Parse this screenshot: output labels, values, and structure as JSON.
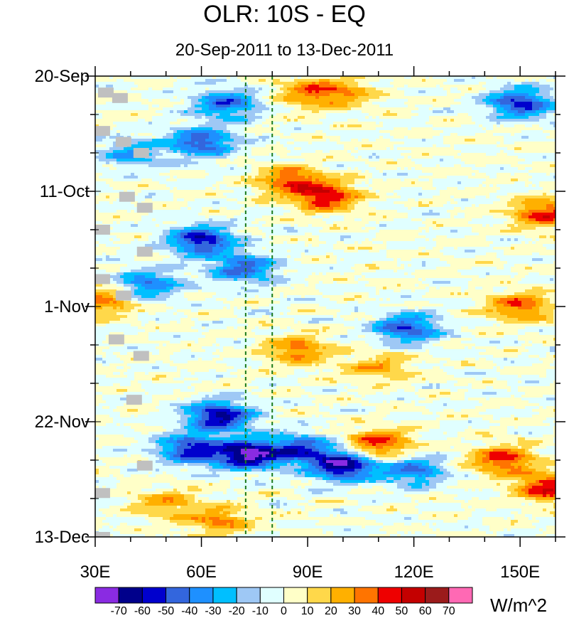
{
  "chart_data": {
    "type": "heatmap",
    "title": "OLR: 10S - EQ",
    "subtitle": "20-Sep-2011 to 13-Dec-2011",
    "x_range": [
      30,
      160
    ],
    "x_ticks": [
      30,
      60,
      90,
      120,
      150
    ],
    "x_tick_labels": [
      "30E",
      "60E",
      "90E",
      "120E",
      "150E"
    ],
    "y_range_days": [
      0,
      84
    ],
    "y_ticks_days": [
      0,
      21,
      42,
      63,
      84
    ],
    "y_tick_labels": [
      "20-Sep",
      "11-Oct",
      "1-Nov",
      "22-Nov",
      "13-Dec"
    ],
    "reference_lines_lon": [
      72.5,
      80
    ],
    "colorbar": {
      "units": "W/m^2",
      "levels": [
        -70,
        -60,
        -50,
        -40,
        -30,
        -20,
        -10,
        0,
        10,
        20,
        30,
        40,
        50,
        60,
        70
      ],
      "colors": [
        "#8a2be2",
        "#00008b",
        "#0000cd",
        "#3366dd",
        "#1e90ff",
        "#00bfff",
        "#9ec8f5",
        "#e0ffff",
        "#ffffc8",
        "#ffd84a",
        "#ffb000",
        "#ff7400",
        "#ee0000",
        "#c40000",
        "#9b1b1b",
        "#ff69b4"
      ],
      "missing_color": "#c0c0c0"
    },
    "anomaly_features": [
      {
        "lon": 90,
        "day": 3,
        "value": 30
      },
      {
        "lon": 100,
        "day": 3,
        "value": 25
      },
      {
        "lon": 67,
        "day": 5,
        "value": -45
      },
      {
        "lon": 150,
        "day": 5,
        "value": -55
      },
      {
        "lon": 60,
        "day": 12,
        "value": -50
      },
      {
        "lon": 40,
        "day": 14,
        "value": -30
      },
      {
        "lon": 85,
        "day": 19,
        "value": 40
      },
      {
        "lon": 95,
        "day": 22,
        "value": 50
      },
      {
        "lon": 157,
        "day": 25,
        "value": 45
      },
      {
        "lon": 60,
        "day": 30,
        "value": -60
      },
      {
        "lon": 72,
        "day": 35,
        "value": -45
      },
      {
        "lon": 45,
        "day": 38,
        "value": -40
      },
      {
        "lon": 32,
        "day": 41,
        "value": 35
      },
      {
        "lon": 150,
        "day": 42,
        "value": 40
      },
      {
        "lon": 118,
        "day": 46,
        "value": -50
      },
      {
        "lon": 87,
        "day": 50,
        "value": 35
      },
      {
        "lon": 110,
        "day": 53,
        "value": 25
      },
      {
        "lon": 65,
        "day": 62,
        "value": -65
      },
      {
        "lon": 88,
        "day": 68,
        "value": -50
      },
      {
        "lon": 73,
        "day": 69,
        "value": -75
      },
      {
        "lon": 57,
        "day": 68,
        "value": -55
      },
      {
        "lon": 110,
        "day": 67,
        "value": 45
      },
      {
        "lon": 145,
        "day": 70,
        "value": 45
      },
      {
        "lon": 100,
        "day": 71,
        "value": -70
      },
      {
        "lon": 120,
        "day": 72,
        "value": -40
      },
      {
        "lon": 50,
        "day": 78,
        "value": 25
      },
      {
        "lon": 65,
        "day": 81,
        "value": 30
      },
      {
        "lon": 158,
        "day": 75,
        "value": 50
      }
    ],
    "missing_points": [
      {
        "lon": 33,
        "day": 3
      },
      {
        "lon": 37,
        "day": 4
      },
      {
        "lon": 32,
        "day": 10
      },
      {
        "lon": 38,
        "day": 12
      },
      {
        "lon": 43,
        "day": 14
      },
      {
        "lon": 39,
        "day": 22
      },
      {
        "lon": 44,
        "day": 24
      },
      {
        "lon": 32,
        "day": 28
      },
      {
        "lon": 44,
        "day": 32
      },
      {
        "lon": 32,
        "day": 37
      },
      {
        "lon": 38,
        "day": 40
      },
      {
        "lon": 36,
        "day": 48
      },
      {
        "lon": 43,
        "day": 51
      },
      {
        "lon": 41,
        "day": 59
      },
      {
        "lon": 44,
        "day": 71
      },
      {
        "lon": 32,
        "day": 76
      },
      {
        "lon": 32,
        "day": 84
      }
    ]
  }
}
